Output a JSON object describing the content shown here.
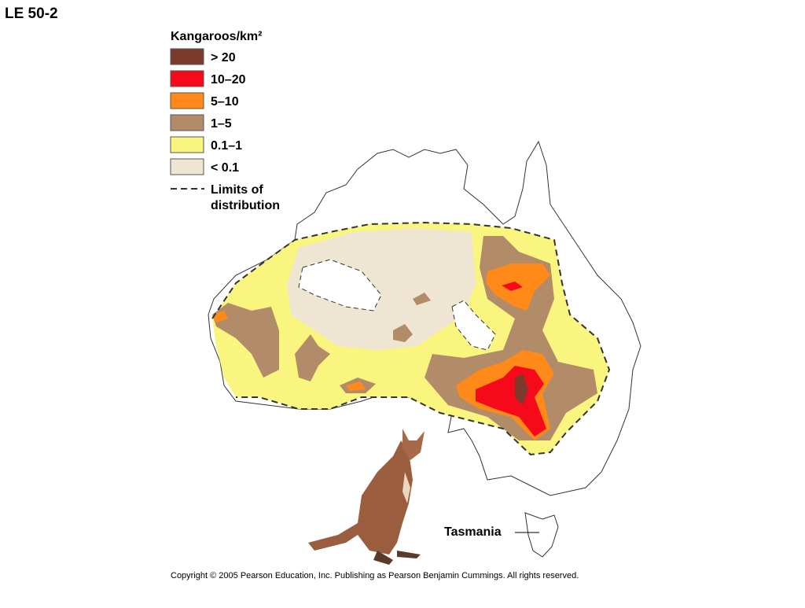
{
  "header": {
    "title": "LE 50-2"
  },
  "legend": {
    "title": "Kangaroos/km²",
    "items": [
      "> 20",
      "10–20",
      "5–10",
      "1–5",
      "0.1–1",
      "< 0.1"
    ],
    "limits": [
      "Limits of",
      "distribution"
    ]
  },
  "labels": {
    "tasmania": "Tasmania"
  },
  "footer": {
    "copyright": "Copyright ©  2005 Pearson Education, Inc. Publishing as Pearson Benjamin Cummings. All rights reserved."
  }
}
